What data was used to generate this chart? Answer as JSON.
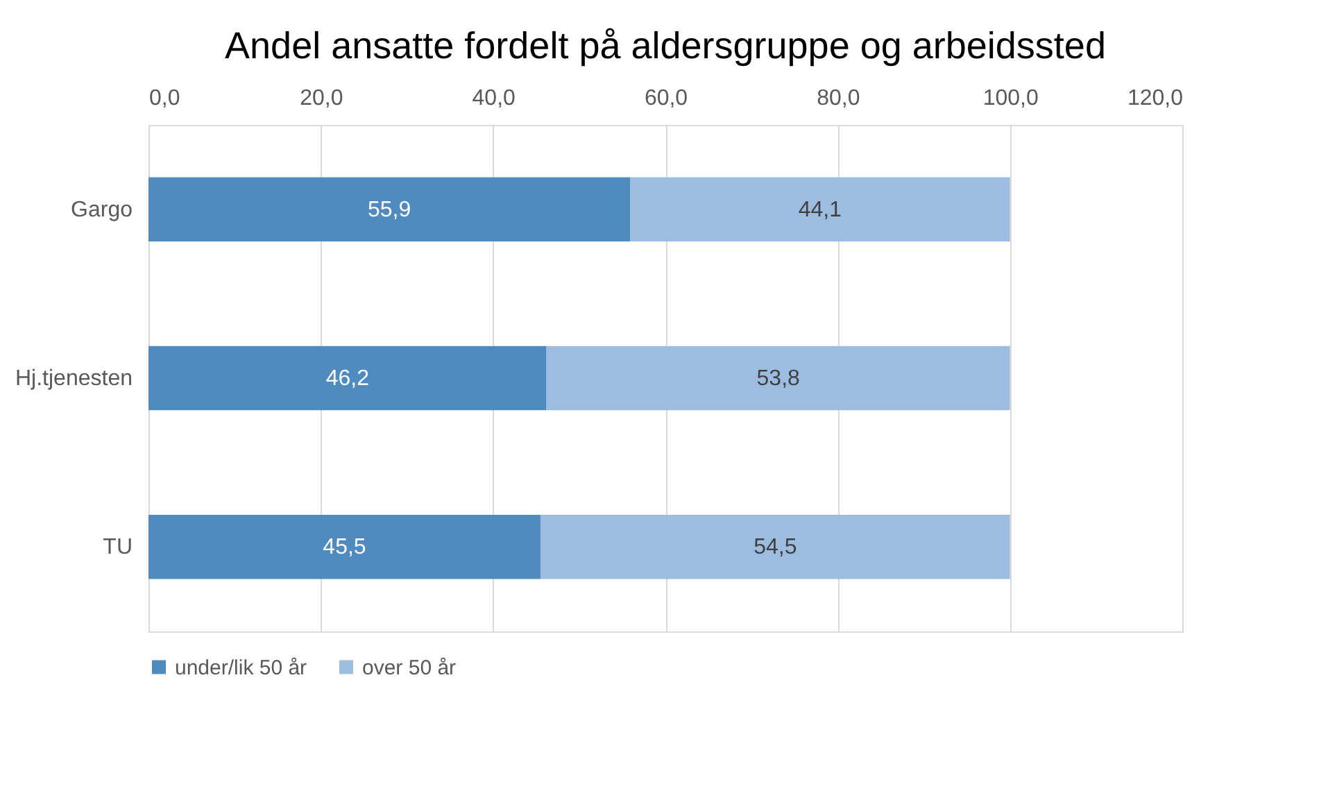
{
  "chart_data": {
    "type": "bar",
    "orientation": "horizontal",
    "stacked": true,
    "title": "Andel ansatte fordelt på aldersgruppe og arbeidssted",
    "categories": [
      "Gargo",
      "Hj.tjenesten",
      "TU"
    ],
    "series": [
      {
        "name": "under/lik 50 år",
        "color": "#4f8bbf",
        "values": [
          55.9,
          46.2,
          45.5
        ],
        "value_labels": [
          "55,9",
          "46,2",
          "45,5"
        ]
      },
      {
        "name": "over 50 år",
        "color": "#9dbde0",
        "values": [
          44.1,
          53.8,
          54.5
        ],
        "value_labels": [
          "44,1",
          "53,8",
          "54,5"
        ]
      }
    ],
    "xlim": [
      0,
      120
    ],
    "xticks": [
      {
        "value": 0,
        "label": "0,0"
      },
      {
        "value": 20,
        "label": "20,0"
      },
      {
        "value": 40,
        "label": "40,0"
      },
      {
        "value": 60,
        "label": "60,0"
      },
      {
        "value": 80,
        "label": "80,0"
      },
      {
        "value": 100,
        "label": "100,0"
      },
      {
        "value": 120,
        "label": "120,0"
      }
    ],
    "grid": "x",
    "legend": "bottom"
  }
}
